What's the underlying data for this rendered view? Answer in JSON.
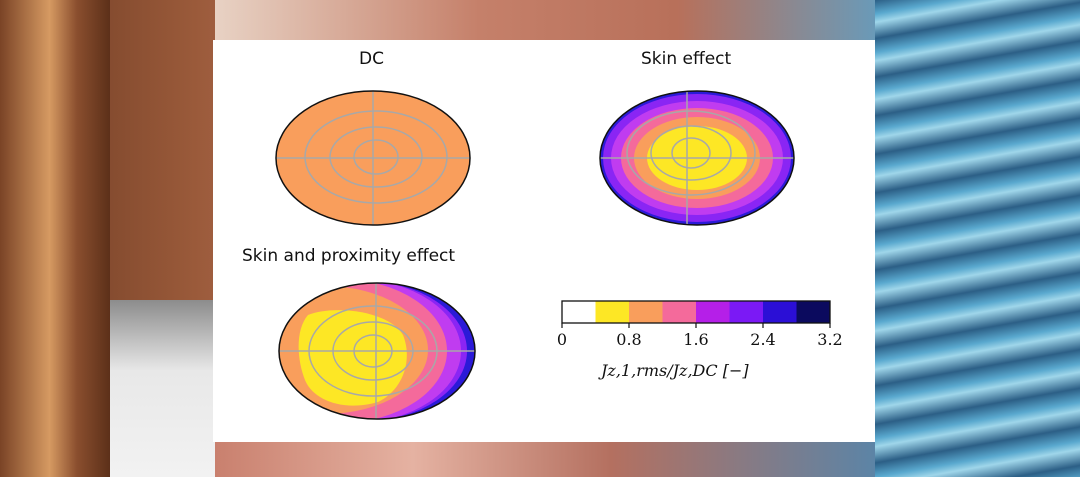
{
  "panels": [
    {
      "title": "DC"
    },
    {
      "title": "Skin effect"
    },
    {
      "title": "Skin and proximity effect"
    }
  ],
  "colorbar": {
    "ticks": [
      "0",
      "0.8",
      "1.6",
      "2.4",
      "3.2"
    ],
    "label": "Jz,1,rms/Jz,DC [−]",
    "colors": [
      "#ffffff",
      "#fde725",
      "#f99e5c",
      "#f46a9b",
      "#b51fe8",
      "#7b19f5",
      "#2b0fd6",
      "#0b0a5e"
    ]
  },
  "palette": {
    "dc_fill": "#f99e5c",
    "yellow": "#fde725",
    "orange": "#f99e5c",
    "pink": "#f46a9b",
    "magenta": "#c03cf0",
    "violet": "#8a25f4",
    "blue": "#2b1ad8",
    "grid": "#a8a8a8"
  }
}
